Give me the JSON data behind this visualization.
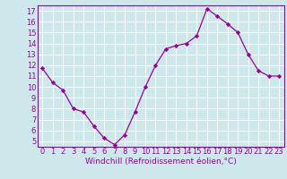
{
  "x": [
    0,
    1,
    2,
    3,
    4,
    5,
    6,
    7,
    8,
    9,
    10,
    11,
    12,
    13,
    14,
    15,
    16,
    17,
    18,
    19,
    20,
    21,
    22,
    23
  ],
  "y": [
    11.7,
    10.4,
    9.7,
    8.0,
    7.7,
    6.4,
    5.3,
    4.7,
    5.6,
    7.7,
    10.0,
    12.0,
    13.5,
    13.8,
    14.0,
    14.7,
    17.2,
    16.5,
    15.8,
    15.0,
    13.0,
    11.5,
    11.0,
    11.0
  ],
  "line_color": "#990099",
  "marker": "D",
  "marker_size": 2.2,
  "bg_color": "#cce8eb",
  "grid_color": "#ffffff",
  "xlabel": "Windchill (Refroidissement éolien,°C)",
  "ylim": [
    4.5,
    17.5
  ],
  "xlim": [
    -0.5,
    23.5
  ],
  "yticks": [
    5,
    6,
    7,
    8,
    9,
    10,
    11,
    12,
    13,
    14,
    15,
    16,
    17
  ],
  "xticks": [
    0,
    1,
    2,
    3,
    4,
    5,
    6,
    7,
    8,
    9,
    10,
    11,
    12,
    13,
    14,
    15,
    16,
    17,
    18,
    19,
    20,
    21,
    22,
    23
  ],
  "tick_color": "#990099",
  "xlabel_color": "#990099",
  "label_fontsize": 6.5,
  "tick_fontsize": 6.0
}
